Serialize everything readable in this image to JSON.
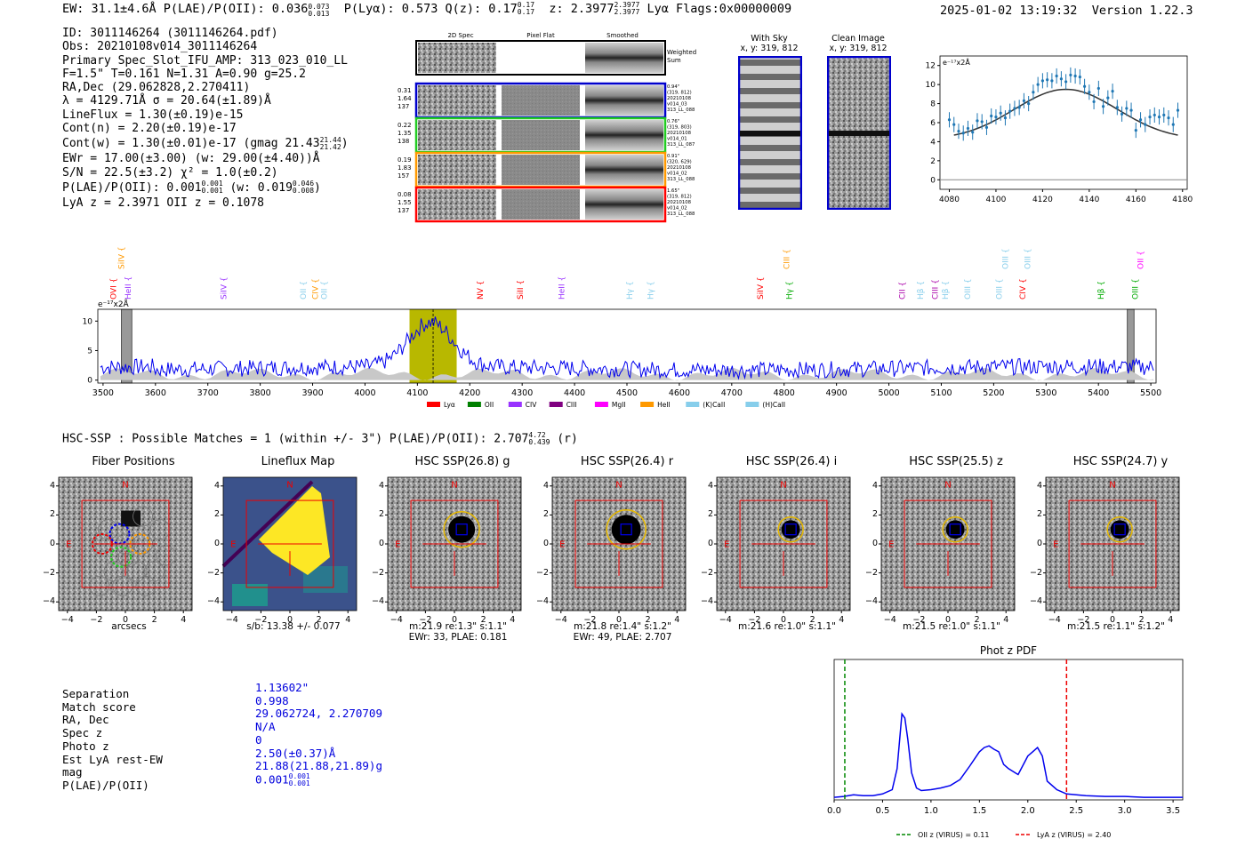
{
  "header": {
    "left": "EW: 31.1±4.6Å  P(LAE)/P(OII): 0.036",
    "lae_sup": "0.073",
    "lae_sub": "0.013",
    "mid": "P(Lyα): 0.573  Q(z): 0.17",
    "q_sup": "0.17",
    "q_sub": "0.17",
    "zpart": "z: 2.3977",
    "z_sup": "2.3977",
    "z_sub": "2.3977",
    "tail": "Lyα  Flags:0x00000009",
    "timestamp": "2025-01-02 13:19:32",
    "version": "Version 1.22.3"
  },
  "info": {
    "id": "ID: 3011146264 (3011146264.pdf)",
    "obs": "Obs: 20210108v014_3011146264",
    "primary": "Primary Spec_Slot_IFU_AMP: 313_023_010_LL",
    "params": "F=1.5\"  T=0.161  N=1.31  A=0.90  g=25.2",
    "radec": "RA,Dec (29.062828,2.270411)",
    "lambda": "λ = 4129.71Å  σ = 20.64(±1.89)Å",
    "lineflux": "LineFlux = 1.30(±0.19)e-15",
    "contn": "Cont(n) = 2.20(±0.19)e-17",
    "contw": "Cont(w) = 1.30(±0.01)e-17 (gmag 21.43",
    "gmag_sup": "21.44",
    "gmag_sub": "21.42",
    "ewr": "EWr = 17.00(±3.00) (w: 29.00(±4.40))Å",
    "sn": "S/N = 22.5(±3.2)  χ² = 1.0(±0.2)",
    "plae": "P(LAE)/P(OII): 0.001",
    "plae_sup": "0.001",
    "plae_sub": "0.001",
    "plae_w": "(w: 0.019",
    "plae_w_sup": "0.046",
    "plae_w_sub": "0.008",
    "lyaz": "LyA z = 2.3971  OII z = 0.1078"
  },
  "spec2d": {
    "col_titles": [
      "2D Spec",
      "Pixel Flat",
      "Smoothed"
    ],
    "weighted": "Weighted Sum",
    "rows": [
      {
        "a": "0.31",
        "b": "1.64",
        "c": "137",
        "info": [
          "0.94\"",
          "(319, 812)",
          "20210108",
          "v014_03",
          "313_LL_088"
        ]
      },
      {
        "a": "0.22",
        "b": "1.35",
        "c": "138",
        "info": [
          "0.76\"",
          "(319, 803)",
          "20210108",
          "v014_01",
          "313_LL_087"
        ]
      },
      {
        "a": "0.19",
        "b": "1.83",
        "c": "157",
        "info": [
          "0.91\"",
          "(320, 629)",
          "20210108",
          "v014_02",
          "313_LL_088"
        ]
      },
      {
        "a": "0.08",
        "b": "1.55",
        "c": "137",
        "info": [
          "1.65\"",
          "(319, 812)",
          "20210108",
          "v014_02",
          "313_LL_088"
        ]
      }
    ],
    "row_colors": [
      "#0000cc",
      "#22cc22",
      "#ff9900",
      "#ff0000"
    ]
  },
  "sky": {
    "with_title": "With Sky",
    "with_xy": "x, y: 319, 812",
    "clean_title": "Clean Image",
    "clean_xy": "x, y: 319, 812"
  },
  "zoom_chart": {
    "type": "scatter",
    "unit_label": "e⁻¹⁷x2Å",
    "xlim": [
      4076,
      4182
    ],
    "ylim": [
      -1,
      13
    ],
    "xticks": [
      4080,
      4100,
      4120,
      4140,
      4160,
      4180
    ],
    "yticks": [
      0,
      2,
      4,
      6,
      8,
      10,
      12
    ],
    "x": [
      4080,
      4082,
      4084,
      4086,
      4088,
      4090,
      4092,
      4094,
      4096,
      4098,
      4100,
      4102,
      4104,
      4106,
      4108,
      4110,
      4112,
      4114,
      4116,
      4118,
      4120,
      4122,
      4124,
      4126,
      4128,
      4130,
      4132,
      4134,
      4136,
      4138,
      4140,
      4142,
      4144,
      4146,
      4148,
      4150,
      4152,
      4154,
      4156,
      4158,
      4160,
      4162,
      4164,
      4166,
      4168,
      4170,
      4172,
      4174,
      4176,
      4178
    ],
    "y": [
      6.3,
      5.8,
      5.1,
      4.9,
      5.4,
      5.0,
      6.2,
      6.1,
      5.5,
      6.7,
      6.6,
      7.0,
      6.5,
      7.2,
      7.5,
      7.6,
      8.3,
      8.0,
      9.2,
      10.0,
      10.4,
      10.5,
      10.4,
      10.9,
      10.6,
      10.3,
      11.0,
      10.9,
      10.8,
      9.8,
      9.2,
      8.2,
      9.6,
      7.7,
      8.6,
      9.3,
      7.6,
      6.9,
      7.5,
      7.3,
      5.2,
      6.3,
      5.8,
      6.6,
      6.8,
      6.6,
      6.8,
      6.5,
      5.8,
      7.3
    ]
  },
  "spectrum": {
    "type": "line",
    "unit_label": "e⁻¹⁷x2Å",
    "xlim": [
      3490,
      5510
    ],
    "ylim": [
      -0.5,
      12
    ],
    "xticks": [
      3500,
      3600,
      3700,
      3800,
      3900,
      4000,
      4100,
      4200,
      4300,
      4400,
      4500,
      4600,
      4700,
      4800,
      4900,
      5000,
      5100,
      5200,
      5300,
      5400,
      5500
    ],
    "yticks": [
      0,
      5,
      10
    ],
    "highlight": [
      4085,
      4175
    ],
    "marker_x": 4130,
    "lines_row2": [
      {
        "label": "OVI",
        "x": 3520,
        "color": "#ff0000"
      },
      {
        "label": "HeII",
        "x": 3548,
        "color": "#9933ff"
      },
      {
        "label": "SiIV",
        "x": 3730,
        "color": "#9933ff"
      },
      {
        "label": "OII",
        "x": 3882,
        "color": "#87ceeb"
      },
      {
        "label": "CIV",
        "x": 3905,
        "color": "#ff9900"
      },
      {
        "label": "OII",
        "x": 3922,
        "color": "#87ceeb"
      },
      {
        "label": "NV",
        "x": 4220,
        "color": "#ff0000"
      },
      {
        "label": "SiII",
        "x": 4296,
        "color": "#ff0000"
      },
      {
        "label": "HeII",
        "x": 4375,
        "color": "#9933ff"
      },
      {
        "label": "Hγ",
        "x": 4505,
        "color": "#87ceeb"
      },
      {
        "label": "Hγ",
        "x": 4545,
        "color": "#87ceeb"
      },
      {
        "label": "SiIV",
        "x": 4755,
        "color": "#ff0000"
      },
      {
        "label": "Hγ",
        "x": 4810,
        "color": "#00aa00"
      },
      {
        "label": "CII",
        "x": 5025,
        "color": "#aa00aa"
      },
      {
        "label": "Hβ",
        "x": 5060,
        "color": "#87ceeb"
      },
      {
        "label": "CIII",
        "x": 5088,
        "color": "#aa00aa"
      },
      {
        "label": "Hβ",
        "x": 5108,
        "color": "#87ceeb"
      },
      {
        "label": "OIII",
        "x": 5150,
        "color": "#87ceeb"
      },
      {
        "label": "OIII",
        "x": 5210,
        "color": "#87ceeb"
      },
      {
        "label": "CIV",
        "x": 5255,
        "color": "#ff0000"
      },
      {
        "label": "Hβ",
        "x": 5405,
        "color": "#00aa00"
      },
      {
        "label": "OIII",
        "x": 5470,
        "color": "#00aa00"
      }
    ],
    "lines_row1": [
      {
        "label": "SiIV",
        "x": 3535,
        "color": "#ff9900"
      },
      {
        "label": "CIII",
        "x": 4805,
        "color": "#ff9900"
      },
      {
        "label": "OIII",
        "x": 5222,
        "color": "#87ceeb"
      },
      {
        "label": "OIII",
        "x": 5265,
        "color": "#87ceeb"
      },
      {
        "label": "OII",
        "x": 5480,
        "color": "#ff00ff"
      }
    ],
    "legend": [
      {
        "label": "Lyα",
        "color": "#ff0000"
      },
      {
        "label": "OII",
        "color": "#008000"
      },
      {
        "label": "CIV",
        "color": "#9933ff"
      },
      {
        "label": "CIII",
        "color": "#800080"
      },
      {
        "label": "MgII",
        "color": "#ff00ff"
      },
      {
        "label": "HeII",
        "color": "#ff9900"
      },
      {
        "label": "(K)CaII",
        "color": "#87ceeb"
      },
      {
        "label": "(H)CaII",
        "color": "#87ceeb"
      }
    ]
  },
  "hsc": {
    "summary": "HSC-SSP : Possible Matches = 1 (within +/- 3\")  P(LAE)/P(OII): 2.707",
    "sum_sup": "4.72",
    "sum_sub": "0.439",
    "sum_tail": "(r)",
    "ticks": [
      -4,
      -2,
      0,
      2,
      4
    ],
    "north": "N",
    "east": "E",
    "panels": [
      {
        "title": "Fiber Positions",
        "cap1": "arcsecs",
        "cap2": ""
      },
      {
        "title": "Lineflux Map",
        "cap1": "s/b: 13.38 +/- 0.077",
        "cap2": ""
      },
      {
        "title": "HSC SSP(26.8) g",
        "cap1": "m:21.9  re:1.3\"  s:1.1\"",
        "cap2": "EWr: 33, PLAE: 0.181"
      },
      {
        "title": "HSC SSP(26.4) r",
        "cap1": "m:21.8  re:1.4\"  s:1.2\"",
        "cap2": "EWr: 49, PLAE: 2.707"
      },
      {
        "title": "HSC SSP(26.4) i",
        "cap1": "m:21.6  re:1.0\"  s:1.1\"",
        "cap2": ""
      },
      {
        "title": "HSC SSP(25.5) z",
        "cap1": "m:21.5  re:1.0\"  s:1.1\"",
        "cap2": ""
      },
      {
        "title": "HSC SSP(24.7) y",
        "cap1": "m:21.5  re:1.1\"  s:1.2\"",
        "cap2": ""
      }
    ]
  },
  "match": {
    "labels": [
      "Separation",
      "Match score",
      "RA, Dec",
      "Spec z",
      "Photo z",
      "Est LyA rest-EW",
      "mag",
      "P(LAE)/P(OII)"
    ],
    "values": [
      "1.13602\"",
      "0.998",
      "29.062724, 2.270709",
      "N/A",
      "0",
      "2.50(±0.37)Å",
      "21.88(21.88,21.89)g",
      "0.001"
    ],
    "plae_sup": "0.001",
    "plae_sub": "0.001"
  },
  "photz": {
    "type": "line",
    "title": "Phot z PDF",
    "xlim": [
      0,
      3.6
    ],
    "xticks": [
      0.0,
      0.5,
      1.0,
      1.5,
      2.0,
      2.5,
      3.0,
      3.5
    ],
    "xticklabels": [
      "0.0",
      "0.5",
      "1.0",
      "1.5",
      "2.0",
      "2.5",
      "3.0",
      "3.5"
    ],
    "x": [
      0,
      0.1,
      0.2,
      0.3,
      0.4,
      0.5,
      0.6,
      0.65,
      0.7,
      0.73,
      0.76,
      0.8,
      0.85,
      0.9,
      1.0,
      1.1,
      1.2,
      1.3,
      1.4,
      1.5,
      1.55,
      1.6,
      1.65,
      1.7,
      1.75,
      1.8,
      1.9,
      2.0,
      2.05,
      2.1,
      2.15,
      2.2,
      2.3,
      2.4,
      2.6,
      2.8,
      3.0,
      3.2,
      3.4,
      3.6
    ],
    "y": [
      0.01,
      0.02,
      0.04,
      0.03,
      0.03,
      0.05,
      0.1,
      0.35,
      1.0,
      0.95,
      0.7,
      0.3,
      0.12,
      0.09,
      0.1,
      0.12,
      0.15,
      0.22,
      0.38,
      0.55,
      0.6,
      0.62,
      0.58,
      0.55,
      0.4,
      0.35,
      0.28,
      0.5,
      0.55,
      0.6,
      0.5,
      0.2,
      0.1,
      0.05,
      0.03,
      0.02,
      0.02,
      0.01,
      0.01,
      0.01
    ],
    "oii_z": 0.11,
    "lya_z": 2.4,
    "legend_oii": "OII z (VIRUS) = 0.11",
    "legend_lya": "LyA z (VIRUS) = 2.40"
  }
}
